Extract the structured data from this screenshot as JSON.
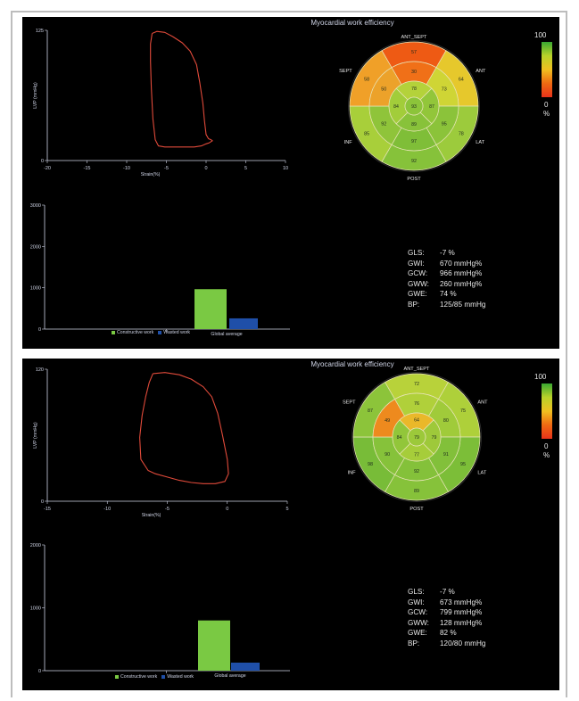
{
  "colors": {
    "loop": "#e04a3a",
    "constructive": "#7ac943",
    "wasted": "#1f4fa8",
    "axis": "#cfd4e6",
    "grid_line": "#e8e4b8"
  },
  "chart_data": [
    {
      "type": "line",
      "title": "Myocardial work efficiency",
      "xlabel": "Strain(%)",
      "ylabel": "LVP (mmHg)",
      "xlim": [
        -20,
        10
      ],
      "ylim": [
        0,
        125
      ],
      "xticks": [
        "-20",
        "-15",
        "-10",
        "-5",
        "0",
        "5",
        "10"
      ],
      "yticks": [
        "0",
        "125"
      ],
      "series": [
        {
          "x": [
            -6.8,
            -6.2,
            -5.2,
            -4.2,
            -3.0,
            -2.0,
            -1.2,
            -0.8,
            -0.4,
            -0.2,
            0.0,
            0.3,
            0.6,
            0.8,
            0.4,
            0.0,
            -0.6,
            -1.5,
            -2.8,
            -4.0,
            -5.2,
            -6.0,
            -6.4,
            -6.7,
            -6.9,
            -7.0,
            -7.0,
            -6.8
          ],
          "y": [
            122,
            124,
            123,
            119,
            113,
            105,
            92,
            75,
            55,
            38,
            25,
            21,
            20,
            19,
            17,
            16,
            14,
            13,
            13,
            13,
            13,
            14,
            20,
            40,
            70,
            95,
            112,
            122
          ]
        }
      ],
      "bullseye": {
        "labels": {
          "anterior_septal": "ANT_SEPT",
          "anterior": "ANT",
          "lateral": "LAT",
          "posterior": "POST",
          "inferior": "INF",
          "septal": "SEPT"
        },
        "colorbar": {
          "max": "100",
          "min": "0",
          "unit": "%"
        },
        "values": {
          "basal": [
            57,
            64,
            78,
            92,
            85,
            58
          ],
          "mid": [
            30,
            73,
            95,
            97,
            92,
            50
          ],
          "apical": [
            78,
            87,
            89,
            84
          ],
          "apex": 93
        },
        "segment_colors": {
          "basal": [
            "#ee5a14",
            "#e6c82c",
            "#9ccb3c",
            "#86c23a",
            "#a8cf3a",
            "#f0a028"
          ],
          "mid": [
            "#f07018",
            "#cfd535",
            "#8bc33a",
            "#7fbe38",
            "#8fc43a",
            "#eca22a"
          ],
          "apical": [
            "#b4d23a",
            "#92c63a",
            "#88c23a",
            "#a2cd3a"
          ],
          "apex": "#8cc43a"
        }
      },
      "bar_chart": {
        "type": "bar",
        "categories": [
          "Global average"
        ],
        "series": [
          {
            "name": "Constructive work",
            "values": [
              966
            ]
          },
          {
            "name": "Wasted work",
            "values": [
              260
            ]
          }
        ],
        "ylim": [
          0,
          3000
        ],
        "yticks": [
          "0",
          "1000",
          "2000",
          "3000"
        ]
      },
      "stats": [
        {
          "label": "GLS:",
          "value": "-7 %"
        },
        {
          "label": "GWI:",
          "value": "670 mmHg%"
        },
        {
          "label": "GCW:",
          "value": "966 mmHg%"
        },
        {
          "label": "GWW:",
          "value": "260 mmHg%"
        },
        {
          "label": "GWE:",
          "value": "74 %"
        },
        {
          "label": "BP:",
          "value": "125/85 mmHg"
        }
      ]
    },
    {
      "type": "line",
      "title": "Myocardial work efficiency",
      "xlabel": "Strain(%)",
      "ylabel": "LVP (mmHg)",
      "xlim": [
        -15,
        5
      ],
      "ylim": [
        0,
        120
      ],
      "xticks": [
        "-15",
        "-10",
        "-5",
        "0",
        "5"
      ],
      "yticks": [
        "0",
        "120"
      ],
      "series": [
        {
          "x": [
            -6.2,
            -5.2,
            -4.0,
            -3.0,
            -2.0,
            -1.3,
            -0.8,
            -0.4,
            0.0,
            0.1,
            -0.2,
            -1.0,
            -2.0,
            -3.0,
            -4.0,
            -5.0,
            -6.0,
            -6.6,
            -7.2,
            -7.3,
            -7.1,
            -6.8,
            -6.5,
            -6.2
          ],
          "y": [
            116,
            117,
            115,
            111,
            104,
            95,
            80,
            60,
            38,
            25,
            18,
            16,
            16,
            17,
            19,
            22,
            25,
            28,
            38,
            58,
            78,
            95,
            108,
            116
          ]
        }
      ],
      "bullseye": {
        "labels": {
          "anterior_septal": "ANT_SEPT",
          "anterior": "ANT",
          "lateral": "LAT",
          "posterior": "POST",
          "inferior": "INF",
          "septal": "SEPT"
        },
        "colorbar": {
          "max": "100",
          "min": "0",
          "unit": "%"
        },
        "values": {
          "basal": [
            72,
            75,
            95,
            89,
            98,
            87
          ],
          "mid": [
            76,
            80,
            91,
            92,
            90,
            49
          ],
          "apical": [
            64,
            79,
            77,
            84
          ],
          "apex": 79
        },
        "segment_colors": {
          "basal": [
            "#b8d23a",
            "#aed03a",
            "#7cbe38",
            "#86c23a",
            "#78bc38",
            "#8cc43a"
          ],
          "mid": [
            "#b0d03a",
            "#a0cb3a",
            "#82c03a",
            "#84c13a",
            "#86c23a",
            "#ee8a1e"
          ],
          "apical": [
            "#eab82a",
            "#9ec93a",
            "#a6cd3a",
            "#92c63a"
          ],
          "apex": "#9cc93a"
        }
      },
      "bar_chart": {
        "type": "bar",
        "categories": [
          "Global average"
        ],
        "series": [
          {
            "name": "Constructive work",
            "values": [
              799
            ]
          },
          {
            "name": "Wasted work",
            "values": [
              128
            ]
          }
        ],
        "ylim": [
          0,
          2000
        ],
        "yticks": [
          "0",
          "1000",
          "2000"
        ]
      },
      "stats": [
        {
          "label": "GLS:",
          "value": "-7 %"
        },
        {
          "label": "GWI:",
          "value": "673 mmHg%"
        },
        {
          "label": "GCW:",
          "value": "799 mmHg%"
        },
        {
          "label": "GWW:",
          "value": "128 mmHg%"
        },
        {
          "label": "GWE:",
          "value": "82 %"
        },
        {
          "label": "BP:",
          "value": "120/80 mmHg"
        }
      ]
    }
  ]
}
